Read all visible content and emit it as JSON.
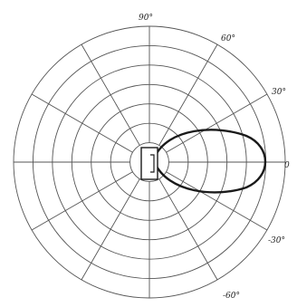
{
  "diagram": {
    "grid_rings": 7,
    "spoke_angles_deg": [
      0,
      30,
      60,
      90,
      120,
      150,
      180,
      210,
      240,
      270,
      300,
      330
    ],
    "angle_labels": [
      {
        "id": "label-90",
        "text": "90°"
      },
      {
        "id": "label-60",
        "text": "60°"
      },
      {
        "id": "label-30",
        "text": "30°"
      },
      {
        "id": "label-0",
        "text": "0"
      },
      {
        "id": "label-neg30",
        "text": "-30°"
      },
      {
        "id": "label-neg60",
        "text": "-60°"
      }
    ],
    "beam_direction_deg": 0,
    "colors": {
      "grid": "#555555",
      "lobe": "#1a1a1a",
      "background": "#ffffff"
    }
  }
}
